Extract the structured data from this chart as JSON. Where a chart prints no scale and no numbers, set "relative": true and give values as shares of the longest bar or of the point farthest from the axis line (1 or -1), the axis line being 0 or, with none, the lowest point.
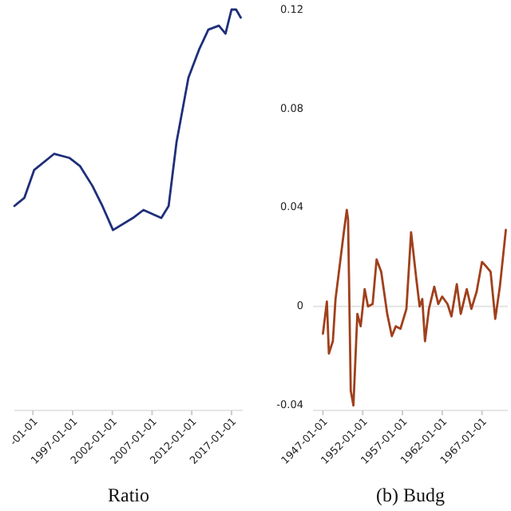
{
  "chart_data": [
    {
      "type": "line",
      "xlabel": "Ratio",
      "relative": true,
      "x": [
        "1989-09",
        "1990-12",
        "1992-03",
        "1994-09",
        "1996-08",
        "1997-12",
        "1999-07",
        "2000-10",
        "2002-02",
        "2004-08",
        "2005-12",
        "2008-03",
        "2009-02",
        "2010-02",
        "2011-08",
        "2012-12",
        "2014-02",
        "2015-06",
        "2016-04",
        "2017-01",
        "2017-08",
        "2018-03"
      ],
      "series": [
        {
          "color": "#1f2f7a",
          "values": [
            0.51,
            0.53,
            0.6,
            0.64,
            0.63,
            0.61,
            0.56,
            0.51,
            0.45,
            0.48,
            0.5,
            0.48,
            0.51,
            0.67,
            0.83,
            0.9,
            0.95,
            0.96,
            0.94,
            1.0,
            1.0,
            0.98
          ]
        }
      ],
      "xlim": [
        "1989-09",
        "2018-06"
      ],
      "xticks": [
        {
          "value": "1992-01-01",
          "label": "-01-01"
        },
        {
          "value": "1997-01-01",
          "label": "1997-01-01"
        },
        {
          "value": "2002-01-01",
          "label": "2002-01-01"
        },
        {
          "value": "2007-01-01",
          "label": "2007-01-01"
        },
        {
          "value": "2012-01-01",
          "label": "2012-01-01"
        },
        {
          "value": "2017-01-01",
          "label": "2017-01-01"
        }
      ],
      "tick_labels": "x",
      "grid": false
    },
    {
      "type": "line",
      "xlabel": "(b) Budg",
      "x": [
        "1947-01",
        "1947-07",
        "1947-10",
        "1948-04",
        "1948-08",
        "1949-03",
        "1949-09",
        "1950-01",
        "1950-03",
        "1950-07",
        "1950-11",
        "1951-05",
        "1951-10",
        "1952-04",
        "1952-09",
        "1953-04",
        "1953-10",
        "1954-05",
        "1955-02",
        "1955-09",
        "1956-03",
        "1956-10",
        "1957-07",
        "1958-02",
        "1958-10",
        "1959-03",
        "1959-07",
        "1959-11",
        "1960-05",
        "1961-01",
        "1961-07",
        "1962-01",
        "1962-09",
        "1963-03",
        "1963-11",
        "1964-05",
        "1965-02",
        "1965-09",
        "1966-05",
        "1967-01",
        "1967-08",
        "1968-02",
        "1968-09",
        "1969-04",
        "1970-01"
      ],
      "series": [
        {
          "color": "#a0401c",
          "values": [
            -0.011,
            0.002,
            -0.019,
            -0.014,
            0.003,
            0.018,
            0.031,
            0.039,
            0.035,
            -0.034,
            -0.04,
            -0.003,
            -0.008,
            0.007,
            0.0,
            0.001,
            0.019,
            0.014,
            -0.003,
            -0.012,
            -0.008,
            -0.009,
            -0.001,
            0.03,
            0.011,
            0.0,
            0.003,
            -0.014,
            -0.001,
            0.008,
            0.001,
            0.004,
            0.001,
            -0.004,
            0.009,
            -0.003,
            0.007,
            -0.001,
            0.006,
            0.018,
            0.016,
            0.014,
            -0.005,
            0.008,
            0.031
          ]
        }
      ],
      "xlim": [
        "1945-10",
        "1970-04"
      ],
      "ylim": [
        -0.042,
        0.12
      ],
      "xticks": [
        {
          "value": "1947-01-01",
          "label": "1947-01-01"
        },
        {
          "value": "1952-01-01",
          "label": "1952-01-01"
        },
        {
          "value": "1957-01-01",
          "label": "1957-01-01"
        },
        {
          "value": "1962-01-01",
          "label": "1962-01-01"
        },
        {
          "value": "1967-01-01",
          "label": "1967-01-01"
        }
      ],
      "yticks": [
        -0.04,
        0,
        0.04,
        0.08,
        0.12
      ],
      "ref_lines": [
        {
          "axis": "y",
          "value": 0,
          "color": "#e4e4e4"
        }
      ],
      "grid": false
    }
  ]
}
